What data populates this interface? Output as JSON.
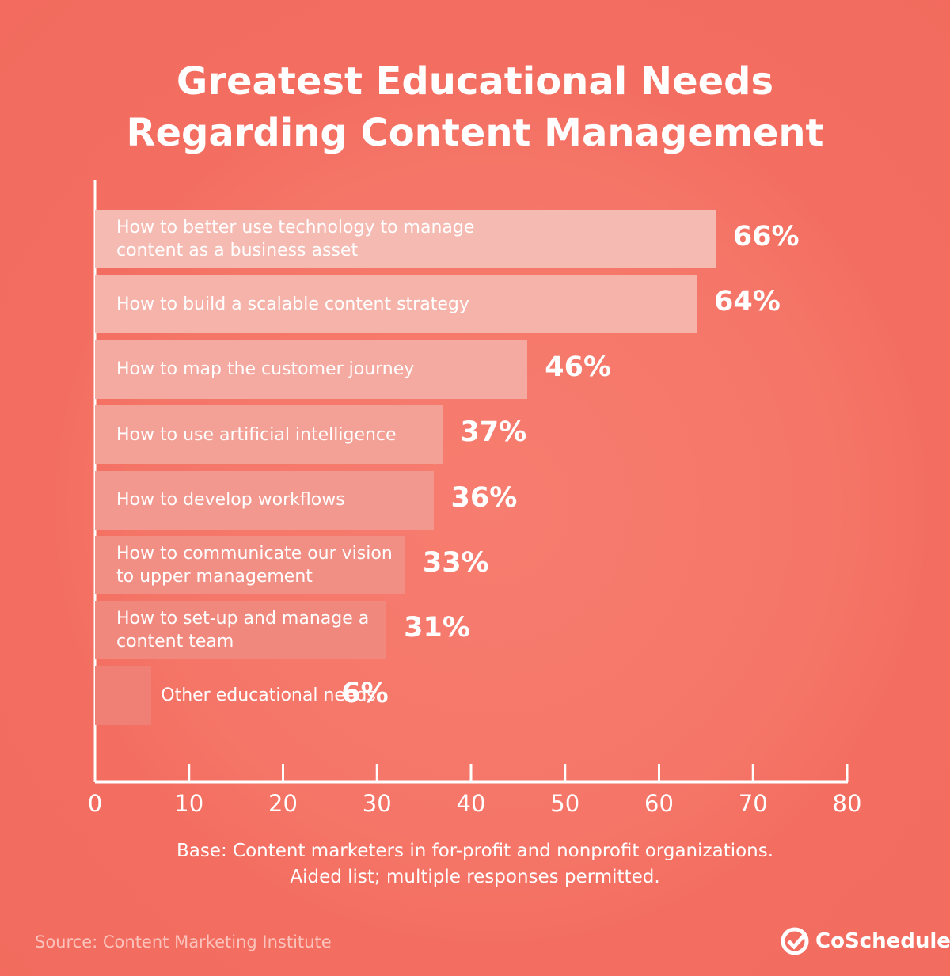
{
  "chart_data": {
    "type": "bar",
    "title": [
      "Greatest Educational Needs",
      "Regarding Content Management"
    ],
    "categories": [
      "How to better use technology to manage content as a business asset",
      "How to build a scalable content strategy",
      "How to map the customer journey",
      "How to use artificial intelligence",
      "How to develop workflows",
      "How to communicate our vision to upper management",
      "How to set-up and manage a content team",
      "Other educational needs"
    ],
    "values": [
      66,
      64,
      46,
      37,
      36,
      33,
      31,
      6
    ],
    "value_labels": [
      "66%",
      "64%",
      "46%",
      "37%",
      "36%",
      "33%",
      "31%",
      "6%"
    ],
    "colors": [
      "#f5bab1",
      "#f5b3aa",
      "#f4aaa1",
      "#f3a197",
      "#f3988e",
      "#f28f85",
      "#f1887d",
      "#f08076"
    ],
    "xlim": [
      0,
      80
    ],
    "xticks": [
      0,
      10,
      20,
      30,
      40,
      50,
      60,
      70,
      80
    ],
    "note": [
      "Base: Content marketers in for-profit and nonprofit organizations.",
      "Aided list; multiple responses permitted."
    ],
    "source": "Source: Content Marketing Institute",
    "brand": "CoSchedule"
  }
}
